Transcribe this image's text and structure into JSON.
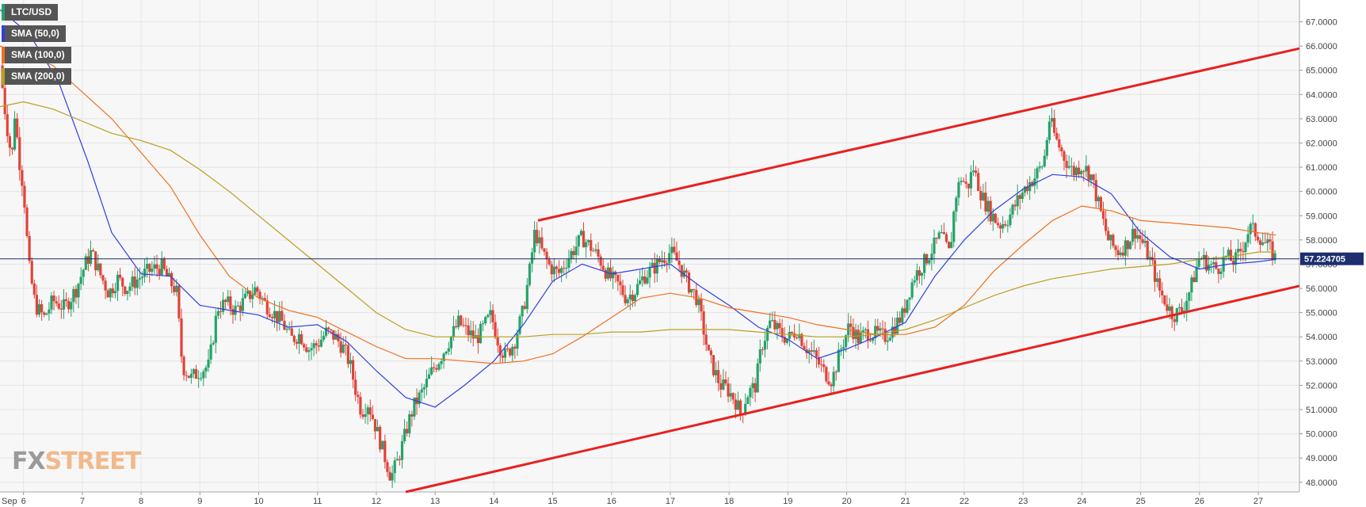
{
  "chart_data": {
    "type": "candlestick",
    "symbol": "LTC/USD",
    "x_month_label": "Sep",
    "x_ticks": [
      {
        "label": "6",
        "x": 6
      },
      {
        "label": "7",
        "x": 7
      },
      {
        "label": "8",
        "x": 8
      },
      {
        "label": "9",
        "x": 9
      },
      {
        "label": "10",
        "x": 10
      },
      {
        "label": "11",
        "x": 11
      },
      {
        "label": "12",
        "x": 12
      },
      {
        "label": "13",
        "x": 13
      },
      {
        "label": "14",
        "x": 14
      },
      {
        "label": "15",
        "x": 15
      },
      {
        "label": "16",
        "x": 16
      },
      {
        "label": "17",
        "x": 17
      },
      {
        "label": "18",
        "x": 18
      },
      {
        "label": "19",
        "x": 19
      },
      {
        "label": "20",
        "x": 20
      },
      {
        "label": "21",
        "x": 21
      },
      {
        "label": "22",
        "x": 22
      },
      {
        "label": "23",
        "x": 23
      },
      {
        "label": "24",
        "x": 24
      },
      {
        "label": "25",
        "x": 25
      },
      {
        "label": "26",
        "x": 26
      },
      {
        "label": "27",
        "x": 27
      }
    ],
    "xlim": [
      5.6,
      27.7
    ],
    "ylim": [
      47.6,
      67.9
    ],
    "y_ticks": [
      "48.0000",
      "49.0000",
      "50.0000",
      "51.0000",
      "52.0000",
      "53.0000",
      "54.0000",
      "55.0000",
      "56.0000",
      "57.0000",
      "58.0000",
      "59.0000",
      "60.0000",
      "61.0000",
      "62.0000",
      "63.0000",
      "64.0000",
      "65.0000",
      "66.0000",
      "67.0000"
    ],
    "current_price": {
      "label": "57.224705",
      "value": 57.22
    },
    "candles_close_path": [
      [
        5.6,
        65.2
      ],
      [
        5.7,
        63.0
      ],
      [
        5.8,
        61.3
      ],
      [
        5.85,
        63.2
      ],
      [
        5.95,
        60.8
      ],
      [
        6.0,
        60.2
      ],
      [
        6.05,
        58.3
      ],
      [
        6.1,
        56.8
      ],
      [
        6.2,
        55.3
      ],
      [
        6.35,
        54.8
      ],
      [
        6.5,
        55.5
      ],
      [
        6.7,
        55.2
      ],
      [
        6.9,
        56.0
      ],
      [
        7.05,
        57.0
      ],
      [
        7.15,
        57.5
      ],
      [
        7.3,
        56.6
      ],
      [
        7.45,
        55.8
      ],
      [
        7.6,
        56.4
      ],
      [
        7.75,
        56.0
      ],
      [
        7.9,
        56.3
      ],
      [
        8.05,
        56.6
      ],
      [
        8.2,
        56.8
      ],
      [
        8.35,
        56.9
      ],
      [
        8.45,
        56.4
      ],
      [
        8.6,
        55.9
      ],
      [
        8.7,
        52.8
      ],
      [
        8.85,
        52.3
      ],
      [
        9.0,
        52.6
      ],
      [
        9.15,
        52.8
      ],
      [
        9.3,
        55.2
      ],
      [
        9.45,
        55.4
      ],
      [
        9.6,
        55.1
      ],
      [
        9.8,
        55.6
      ],
      [
        9.95,
        56.0
      ],
      [
        10.1,
        55.4
      ],
      [
        10.25,
        55.0
      ],
      [
        10.4,
        54.6
      ],
      [
        10.55,
        53.9
      ],
      [
        10.7,
        54.1
      ],
      [
        10.85,
        53.5
      ],
      [
        11.0,
        53.7
      ],
      [
        11.15,
        54.2
      ],
      [
        11.3,
        54.0
      ],
      [
        11.45,
        53.5
      ],
      [
        11.55,
        52.9
      ],
      [
        11.65,
        51.8
      ],
      [
        11.75,
        50.9
      ],
      [
        11.85,
        51.3
      ],
      [
        11.95,
        50.6
      ],
      [
        12.05,
        49.8
      ],
      [
        12.15,
        49.0
      ],
      [
        12.25,
        48.2
      ],
      [
        12.35,
        48.8
      ],
      [
        12.45,
        49.6
      ],
      [
        12.55,
        50.5
      ],
      [
        12.65,
        51.2
      ],
      [
        12.8,
        51.8
      ],
      [
        12.95,
        52.6
      ],
      [
        13.1,
        53.2
      ],
      [
        13.25,
        53.9
      ],
      [
        13.4,
        54.6
      ],
      [
        13.55,
        54.2
      ],
      [
        13.7,
        53.9
      ],
      [
        13.85,
        54.5
      ],
      [
        13.95,
        54.9
      ],
      [
        14.1,
        53.6
      ],
      [
        14.2,
        53.2
      ],
      [
        14.35,
        53.8
      ],
      [
        14.5,
        55.1
      ],
      [
        14.6,
        56.6
      ],
      [
        14.7,
        58.4
      ],
      [
        14.8,
        57.6
      ],
      [
        14.95,
        56.9
      ],
      [
        15.1,
        56.6
      ],
      [
        15.3,
        57.4
      ],
      [
        15.5,
        58.1
      ],
      [
        15.65,
        57.7
      ],
      [
        15.8,
        57.2
      ],
      [
        15.95,
        56.5
      ],
      [
        16.1,
        56.2
      ],
      [
        16.25,
        55.6
      ],
      [
        16.4,
        55.9
      ],
      [
        16.55,
        56.5
      ],
      [
        16.7,
        56.8
      ],
      [
        16.85,
        57.2
      ],
      [
        17.0,
        57.5
      ],
      [
        17.15,
        57.0
      ],
      [
        17.3,
        56.2
      ],
      [
        17.45,
        55.6
      ],
      [
        17.55,
        54.5
      ],
      [
        17.65,
        53.2
      ],
      [
        17.75,
        52.6
      ],
      [
        17.85,
        52.0
      ],
      [
        17.95,
        51.9
      ],
      [
        18.1,
        51.4
      ],
      [
        18.2,
        50.8
      ],
      [
        18.3,
        51.6
      ],
      [
        18.45,
        52.0
      ],
      [
        18.55,
        53.6
      ],
      [
        18.7,
        54.6
      ],
      [
        18.85,
        54.2
      ],
      [
        19.0,
        53.9
      ],
      [
        19.15,
        54.3
      ],
      [
        19.3,
        53.6
      ],
      [
        19.45,
        53.2
      ],
      [
        19.6,
        52.6
      ],
      [
        19.75,
        52.2
      ],
      [
        19.9,
        53.5
      ],
      [
        20.05,
        54.5
      ],
      [
        20.2,
        53.9
      ],
      [
        20.35,
        54.2
      ],
      [
        20.5,
        54.1
      ],
      [
        20.65,
        54.0
      ],
      [
        20.8,
        54.4
      ],
      [
        20.95,
        54.9
      ],
      [
        21.05,
        55.8
      ],
      [
        21.15,
        56.5
      ],
      [
        21.3,
        57.0
      ],
      [
        21.45,
        57.6
      ],
      [
        21.6,
        58.2
      ],
      [
        21.75,
        57.4
      ],
      [
        21.85,
        59.8
      ],
      [
        21.95,
        60.6
      ],
      [
        22.05,
        60.1
      ],
      [
        22.15,
        61.0
      ],
      [
        22.3,
        59.8
      ],
      [
        22.45,
        59.1
      ],
      [
        22.6,
        58.6
      ],
      [
        22.75,
        58.9
      ],
      [
        22.9,
        59.6
      ],
      [
        23.05,
        60.2
      ],
      [
        23.2,
        60.6
      ],
      [
        23.35,
        61.2
      ],
      [
        23.45,
        63.0
      ],
      [
        23.55,
        62.2
      ],
      [
        23.7,
        61.4
      ],
      [
        23.85,
        60.8
      ],
      [
        24.0,
        61.1
      ],
      [
        24.15,
        60.7
      ],
      [
        24.3,
        59.3
      ],
      [
        24.45,
        58.0
      ],
      [
        24.6,
        57.5
      ],
      [
        24.75,
        57.8
      ],
      [
        24.9,
        58.4
      ],
      [
        25.05,
        57.8
      ],
      [
        25.2,
        56.9
      ],
      [
        25.3,
        56.0
      ],
      [
        25.45,
        55.3
      ],
      [
        25.55,
        54.9
      ],
      [
        25.7,
        55.1
      ],
      [
        25.85,
        56.0
      ],
      [
        26.0,
        57.3
      ],
      [
        26.15,
        57.0
      ],
      [
        26.3,
        56.8
      ],
      [
        26.45,
        57.3
      ],
      [
        26.6,
        57.1
      ],
      [
        26.75,
        57.8
      ],
      [
        26.85,
        58.5
      ],
      [
        27.0,
        58.2
      ],
      [
        27.1,
        57.9
      ],
      [
        27.2,
        57.6
      ],
      [
        27.3,
        57.2
      ]
    ],
    "series": [
      {
        "name": "SMA (50,0)",
        "color": "#2f3fe0",
        "x": [
          5.6,
          6.1,
          6.6,
          7.1,
          7.5,
          8.0,
          8.5,
          9.0,
          9.5,
          10.0,
          10.5,
          11.0,
          11.5,
          12.0,
          12.5,
          13.0,
          13.5,
          14.0,
          14.5,
          15.0,
          15.5,
          16.0,
          16.5,
          17.0,
          17.5,
          18.0,
          18.5,
          19.0,
          19.5,
          20.0,
          20.5,
          21.0,
          21.5,
          22.0,
          22.5,
          23.0,
          23.5,
          24.0,
          24.5,
          25.0,
          25.5,
          26.0,
          26.5,
          27.0,
          27.3
        ],
        "values": [
          67.5,
          66.5,
          64.5,
          61.2,
          58.3,
          56.6,
          56.5,
          55.3,
          55.1,
          54.9,
          54.4,
          54.5,
          53.8,
          52.6,
          51.5,
          51.1,
          52.0,
          53.0,
          54.5,
          56.3,
          57.0,
          56.6,
          56.8,
          57.0,
          56.1,
          55.3,
          54.4,
          53.9,
          53.1,
          53.5,
          54.0,
          54.6,
          56.5,
          58.0,
          59.2,
          60.1,
          60.7,
          60.6,
          59.9,
          58.3,
          57.3,
          56.8,
          57.0,
          57.1,
          57.2
        ]
      },
      {
        "name": "SMA (100,0)",
        "color": "#f07020",
        "x": [
          5.6,
          6.5,
          7.5,
          8.5,
          9.0,
          9.5,
          10.0,
          10.5,
          11.0,
          11.5,
          12.0,
          12.5,
          13.0,
          13.5,
          14.0,
          14.5,
          15.0,
          15.5,
          16.0,
          16.5,
          17.0,
          17.5,
          18.0,
          18.5,
          19.0,
          19.5,
          20.0,
          20.5,
          21.0,
          21.5,
          22.0,
          22.5,
          23.0,
          23.5,
          24.0,
          24.5,
          25.0,
          25.5,
          26.0,
          26.5,
          27.0,
          27.3
        ],
        "values": [
          66.0,
          65.2,
          63.0,
          60.2,
          58.2,
          56.5,
          55.6,
          55.1,
          54.8,
          54.2,
          53.6,
          53.1,
          53.1,
          53.0,
          52.9,
          53.0,
          53.3,
          54.0,
          54.8,
          55.6,
          55.8,
          55.6,
          55.2,
          55.0,
          54.8,
          54.5,
          54.3,
          54.1,
          54.1,
          54.4,
          55.3,
          56.7,
          57.8,
          58.8,
          59.4,
          59.2,
          58.8,
          58.7,
          58.6,
          58.5,
          58.3,
          58.2
        ]
      },
      {
        "name": "SMA (200,0)",
        "color": "#b8a020",
        "x": [
          5.6,
          6.0,
          6.5,
          7.0,
          7.5,
          8.0,
          8.5,
          9.0,
          9.5,
          10.0,
          10.5,
          11.0,
          11.5,
          12.0,
          12.5,
          13.0,
          13.5,
          14.0,
          14.5,
          15.0,
          15.5,
          16.0,
          16.5,
          17.0,
          17.5,
          18.0,
          18.5,
          19.0,
          19.5,
          20.0,
          20.5,
          21.0,
          21.5,
          22.0,
          22.5,
          23.0,
          23.5,
          24.0,
          24.5,
          25.0,
          25.5,
          26.0,
          26.5,
          27.0,
          27.3
        ],
        "values": [
          63.5,
          63.7,
          63.4,
          62.9,
          62.4,
          62.1,
          61.7,
          60.9,
          60.0,
          59.0,
          58.0,
          57.0,
          56.0,
          55.0,
          54.3,
          54.0,
          54.0,
          54.0,
          54.0,
          54.1,
          54.1,
          54.2,
          54.2,
          54.3,
          54.3,
          54.3,
          54.2,
          54.1,
          54.0,
          54.0,
          54.1,
          54.3,
          54.7,
          55.2,
          55.7,
          56.1,
          56.4,
          56.6,
          56.8,
          56.9,
          57.0,
          57.2,
          57.3,
          57.5,
          57.5
        ]
      }
    ],
    "trendlines": [
      {
        "color": "#e82020",
        "points": [
          [
            14.75,
            58.8
          ],
          [
            27.7,
            65.9
          ]
        ]
      },
      {
        "color": "#e82020",
        "points": [
          [
            12.5,
            47.6
          ],
          [
            27.7,
            56.1
          ]
        ]
      }
    ],
    "legend": [
      {
        "label": "LTC/USD",
        "color": "#26a26a"
      },
      {
        "label": "SMA (50,0)",
        "color": "#2f3fe0"
      },
      {
        "label": "SMA (100,0)",
        "color": "#f07020"
      },
      {
        "label": "SMA (200,0)",
        "color": "#b8a020"
      }
    ],
    "legend_position": "top-left"
  },
  "logo": {
    "fx": "FX",
    "street": "STREET"
  }
}
